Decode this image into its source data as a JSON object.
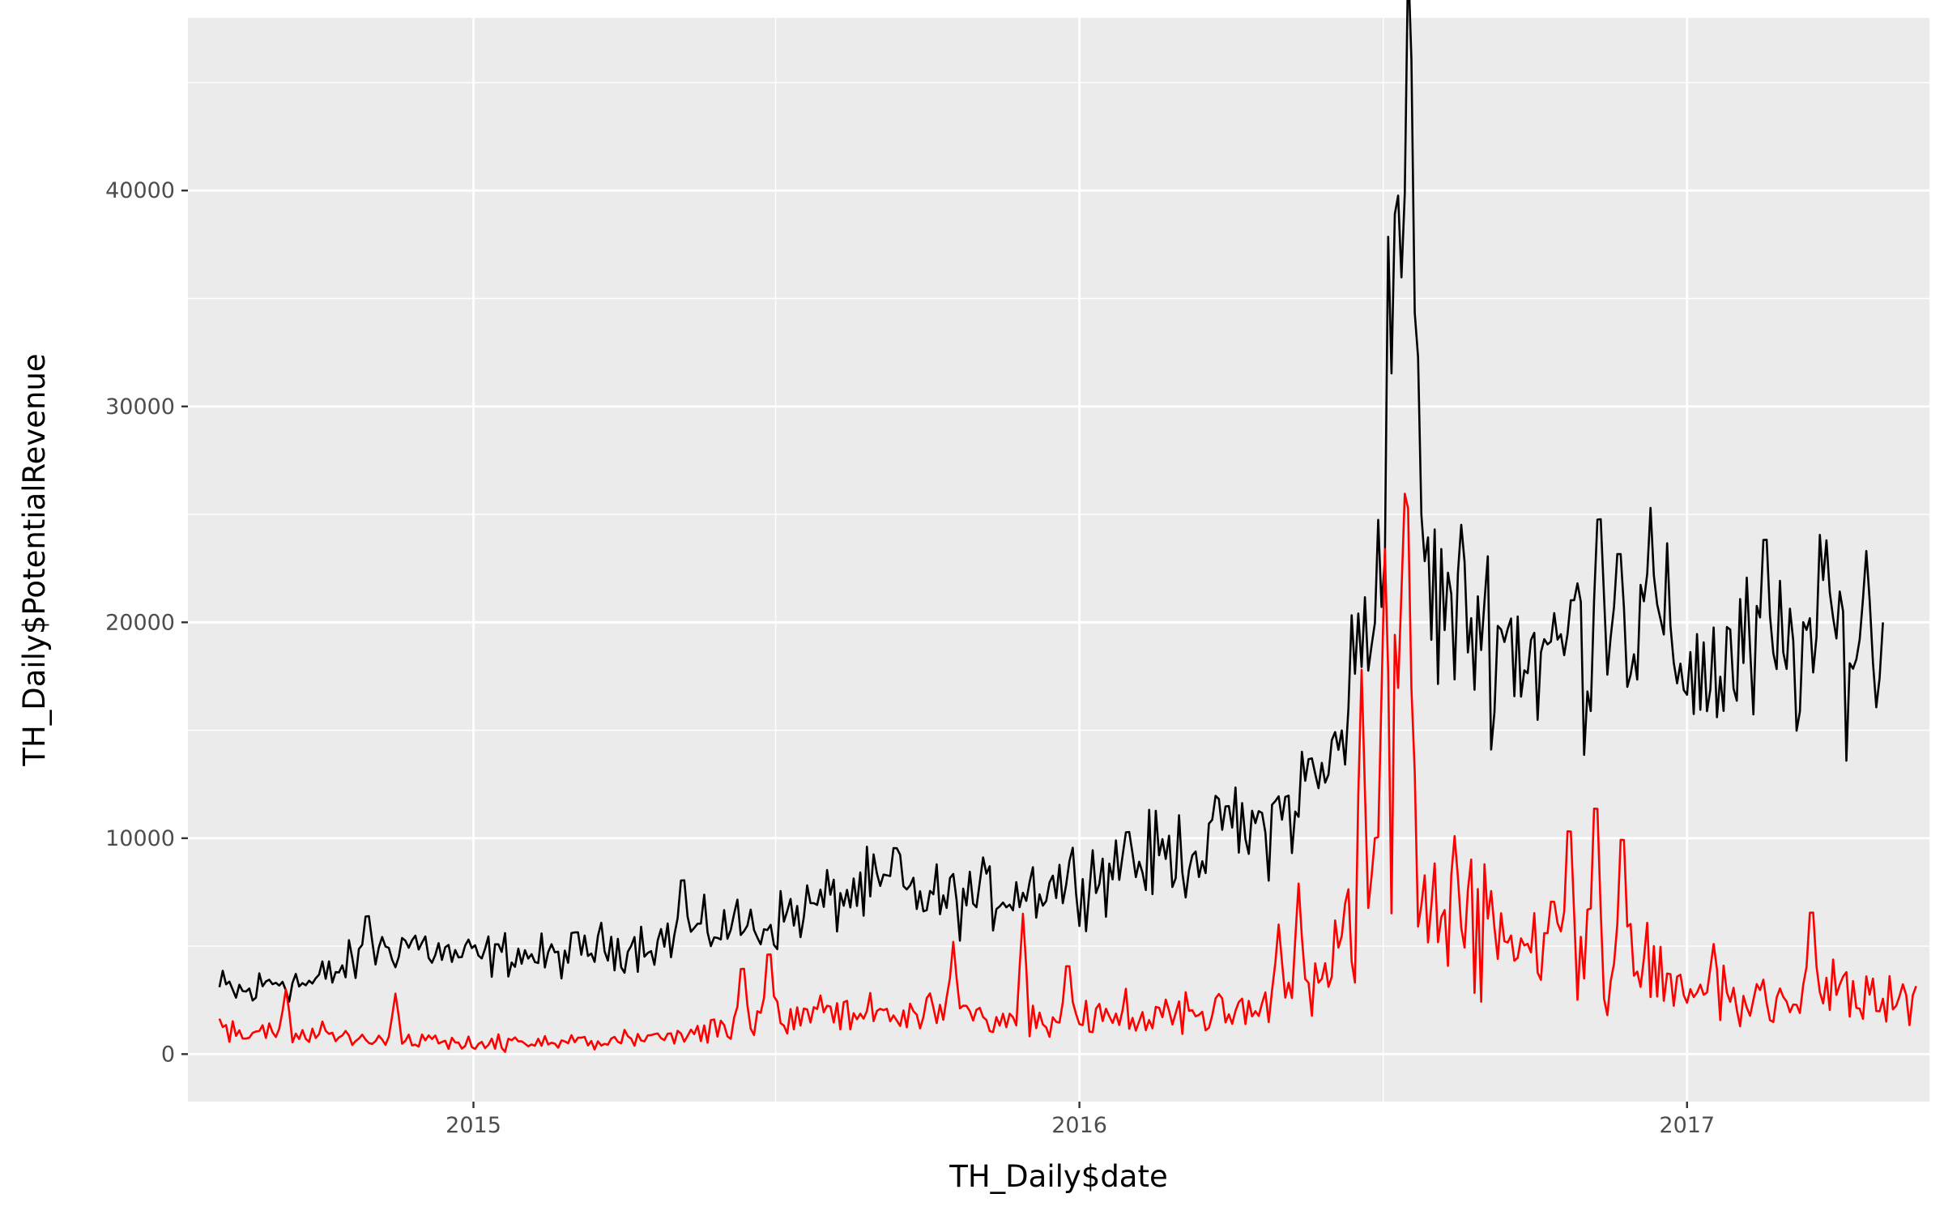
{
  "chart_data": {
    "type": "line",
    "title": "",
    "xlabel": "TH_Daily$date",
    "ylabel": "TH_Daily$PotentialRevenue",
    "x_range": [
      "2014-07-13",
      "2017-05-27"
    ],
    "ylim": [
      -2200,
      48000
    ],
    "y_ticks": [
      0,
      10000,
      20000,
      30000,
      40000
    ],
    "y_tick_labels": [
      "0",
      "10000",
      "20000",
      "30000",
      "40000"
    ],
    "x_ticks": [
      "2015-01-01",
      "2016-01-01",
      "2017-01-01"
    ],
    "x_tick_labels": [
      "2015",
      "2016",
      "2017"
    ],
    "x_minor_ticks": [
      "2014-07-02",
      "2015-07-02",
      "2016-07-02"
    ],
    "y_minor_ticks": [
      5000,
      15000,
      25000,
      35000,
      45000
    ],
    "grid": true,
    "legend": "none",
    "background": "#ebebeb",
    "grid_color": "#ffffff",
    "series": [
      {
        "color": "#000000",
        "points": [
          [
            "2014-08-01",
            3000
          ],
          [
            "2014-08-20",
            2800
          ],
          [
            "2014-09-05",
            3500
          ],
          [
            "2014-09-25",
            3200
          ],
          [
            "2014-10-15",
            4000
          ],
          [
            "2014-11-05",
            4800
          ],
          [
            "2014-11-25",
            5200
          ],
          [
            "2014-12-15",
            4600
          ],
          [
            "2015-01-05",
            4500
          ],
          [
            "2015-01-25",
            4700
          ],
          [
            "2015-02-15",
            4400
          ],
          [
            "2015-03-10",
            4900
          ],
          [
            "2015-04-01",
            5000
          ],
          [
            "2015-04-25",
            5300
          ],
          [
            "2015-05-15",
            5600
          ],
          [
            "2015-06-05",
            6000
          ],
          [
            "2015-06-25",
            5900
          ],
          [
            "2015-07-15",
            6600
          ],
          [
            "2015-08-10",
            7300
          ],
          [
            "2015-09-01",
            7700
          ],
          [
            "2015-09-25",
            7400
          ],
          [
            "2015-10-15",
            7100
          ],
          [
            "2015-11-05",
            7300
          ],
          [
            "2015-11-25",
            7600
          ],
          [
            "2015-12-15",
            7900
          ],
          [
            "2016-01-05",
            8300
          ],
          [
            "2016-01-25",
            8600
          ],
          [
            "2016-02-15",
            9100
          ],
          [
            "2016-03-05",
            9400
          ],
          [
            "2016-03-25",
            9800
          ],
          [
            "2016-04-15",
            10300
          ],
          [
            "2016-05-05",
            11300
          ],
          [
            "2016-05-20",
            12500
          ],
          [
            "2016-06-01",
            13200
          ],
          [
            "2016-06-10",
            16500
          ],
          [
            "2016-06-20",
            19000
          ],
          [
            "2016-06-27",
            21000
          ],
          [
            "2016-07-02",
            27000
          ],
          [
            "2016-07-06",
            34000
          ],
          [
            "2016-07-10",
            38500
          ],
          [
            "2016-07-14",
            42000
          ],
          [
            "2016-07-17",
            44000
          ],
          [
            "2016-07-20",
            37000
          ],
          [
            "2016-07-24",
            27000
          ],
          [
            "2016-07-30",
            21000
          ],
          [
            "2016-08-20",
            20500
          ],
          [
            "2016-09-10",
            19500
          ],
          [
            "2016-10-01",
            18500
          ],
          [
            "2016-10-25",
            18700
          ],
          [
            "2016-11-15",
            19500
          ],
          [
            "2016-12-05",
            19300
          ],
          [
            "2016-12-25",
            18600
          ],
          [
            "2017-01-15",
            17600
          ],
          [
            "2017-02-05",
            18300
          ],
          [
            "2017-02-25",
            18600
          ],
          [
            "2017-03-20",
            18900
          ],
          [
            "2017-04-10",
            19100
          ],
          [
            "2017-04-30",
            18500
          ]
        ],
        "noise": 0.17,
        "noise_min": 800,
        "spikes": [
          [
            "2014-10-29",
            7000
          ],
          [
            "2015-05-07",
            8900
          ],
          [
            "2015-09-12",
            10200
          ],
          [
            "2016-01-30",
            10800
          ],
          [
            "2016-03-30",
            12000
          ],
          [
            "2016-05-19",
            14100
          ],
          [
            "2016-10-24",
            21800
          ],
          [
            "2016-11-09",
            26600
          ],
          [
            "2016-11-21",
            24400
          ],
          [
            "2016-12-10",
            25300
          ],
          [
            "2017-02-17",
            25600
          ],
          [
            "2017-03-26",
            23800
          ],
          [
            "2017-04-19",
            23300
          ],
          [
            "2017-05-13",
            22000
          ]
        ]
      },
      {
        "color": "#ff0000",
        "points": [
          [
            "2014-08-01",
            1200
          ],
          [
            "2014-09-01",
            1000
          ],
          [
            "2014-10-01",
            900
          ],
          [
            "2014-11-01",
            750
          ],
          [
            "2014-12-01",
            650
          ],
          [
            "2015-01-01",
            550
          ],
          [
            "2015-02-01",
            500
          ],
          [
            "2015-03-01",
            550
          ],
          [
            "2015-04-01",
            600
          ],
          [
            "2015-05-01",
            800
          ],
          [
            "2015-06-01",
            1200
          ],
          [
            "2015-07-01",
            1700
          ],
          [
            "2015-08-01",
            1800
          ],
          [
            "2015-09-01",
            1900
          ],
          [
            "2015-10-01",
            1900
          ],
          [
            "2015-11-01",
            1800
          ],
          [
            "2015-12-01",
            1500
          ],
          [
            "2016-01-01",
            1600
          ],
          [
            "2016-02-01",
            1800
          ],
          [
            "2016-03-01",
            2000
          ],
          [
            "2016-04-01",
            2200
          ],
          [
            "2016-05-01",
            2500
          ],
          [
            "2016-05-25",
            3200
          ],
          [
            "2016-06-10",
            5500
          ],
          [
            "2016-06-25",
            7000
          ],
          [
            "2016-07-05",
            12000
          ],
          [
            "2016-07-14",
            20000
          ],
          [
            "2016-07-22",
            9000
          ],
          [
            "2016-08-01",
            7000
          ],
          [
            "2016-09-01",
            5500
          ],
          [
            "2016-10-01",
            5000
          ],
          [
            "2016-11-01",
            4500
          ],
          [
            "2016-12-01",
            3800
          ],
          [
            "2017-01-01",
            3000
          ],
          [
            "2017-02-01",
            2600
          ],
          [
            "2017-03-01",
            2700
          ],
          [
            "2017-04-01",
            2900
          ],
          [
            "2017-05-01",
            3000
          ],
          [
            "2017-05-20",
            2400
          ]
        ],
        "noise": 0.4,
        "noise_min": 300,
        "spikes": [
          [
            "2014-09-10",
            3000
          ],
          [
            "2014-11-15",
            2800
          ],
          [
            "2015-06-12",
            4800
          ],
          [
            "2015-06-28",
            5600
          ],
          [
            "2015-10-17",
            5200
          ],
          [
            "2015-11-28",
            6500
          ],
          [
            "2015-12-25",
            4900
          ],
          [
            "2016-04-30",
            6000
          ],
          [
            "2016-05-12",
            7900
          ],
          [
            "2016-06-19",
            17800
          ],
          [
            "2016-07-03",
            23400
          ],
          [
            "2016-07-16",
            28400
          ],
          [
            "2016-08-14",
            10100
          ],
          [
            "2016-10-12",
            7800
          ],
          [
            "2016-10-22",
            12200
          ],
          [
            "2016-11-07",
            13700
          ],
          [
            "2016-11-23",
            11900
          ],
          [
            "2017-01-17",
            5100
          ],
          [
            "2017-03-17",
            7800
          ],
          [
            "2017-05-22",
            5300
          ]
        ]
      }
    ]
  }
}
